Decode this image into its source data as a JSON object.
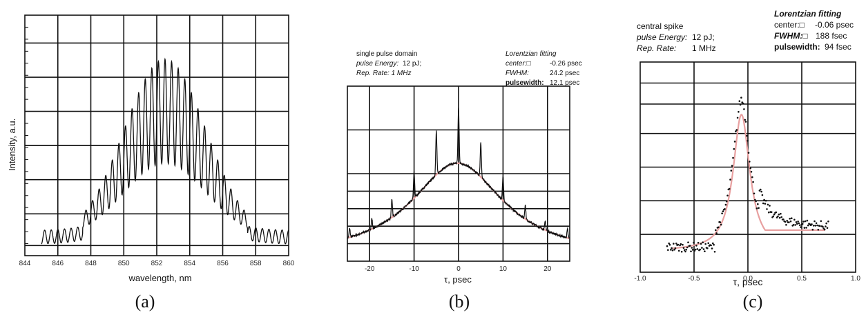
{
  "chart_data": [
    {
      "type": "line",
      "caption": "(a)",
      "xlabel": "wavelength, nm",
      "ylabel": "Intensity, a.u.",
      "xlim": [
        844,
        860
      ],
      "x_ticks": [
        "844",
        "846",
        "848",
        "850",
        "852",
        "854",
        "856",
        "858",
        "860"
      ],
      "grid": true,
      "series": [
        {
          "envelope_center_nm": 852.5,
          "fringe_period_nm": 0.4,
          "x_range": [
            845.0,
            860.0
          ]
        }
      ]
    },
    {
      "type": "line",
      "caption": "(b)",
      "xlabel": "τ, psec",
      "xlim": [
        -25,
        25
      ],
      "x_ticks": [
        "-20",
        "-10",
        "0",
        "10",
        "20"
      ],
      "grid": true,
      "annotation_left": {
        "line1": "single pulse domain",
        "line2_label": "pulse Energy:",
        "line2_value": "12 pJ;",
        "line3": "Rep. Rate: 1 MHz"
      },
      "annotation_right": {
        "title": "Lorentzian fitting",
        "center_label": "center:□",
        "center_value": "-0.26 psec",
        "fwhm_label": "FWHM:",
        "fwhm_value": "24.2 psec",
        "pulsewidth_label": "pulsewidth:",
        "pulsewidth_value": "12.1 psec"
      },
      "series": [
        {
          "spike_positions_psec": [
            -24.5,
            -19.5,
            -15,
            -10,
            -5,
            0,
            5,
            10,
            15,
            19.5,
            24.5
          ],
          "color": "#111111"
        },
        {
          "color": "#e8a0a0",
          "center_psec": -0.26,
          "fwhm_psec": 24.2
        }
      ]
    },
    {
      "type": "scatter",
      "caption": "(c)",
      "xlabel": "τ, psec",
      "xlim": [
        -1.0,
        1.0
      ],
      "x_ticks": [
        "-1.0",
        "-0.5",
        "0.0",
        "0.5",
        "1.0"
      ],
      "grid": true,
      "annotation_left": {
        "line1": "central spike",
        "line2_label": "pulse Energy:",
        "line2_value": "12 pJ;",
        "line3_label": "Rep. Rate:",
        "line3_value": "1 MHz"
      },
      "annotation_right": {
        "title": "Lorentzian fitting",
        "center_label": "center:□",
        "center_value": "-0.06 psec",
        "fwhm_label": "FWHM:□",
        "fwhm_value": "188 fsec",
        "pulsewidth_label": "pulsewidth:",
        "pulsewidth_value": "94 fsec"
      },
      "series": [
        {
          "x_range": [
            -0.75,
            0.75
          ],
          "color": "#111111"
        },
        {
          "color": "#e8a0a0",
          "center_psec": -0.06,
          "fwhm_psec": 0.188
        }
      ]
    }
  ]
}
